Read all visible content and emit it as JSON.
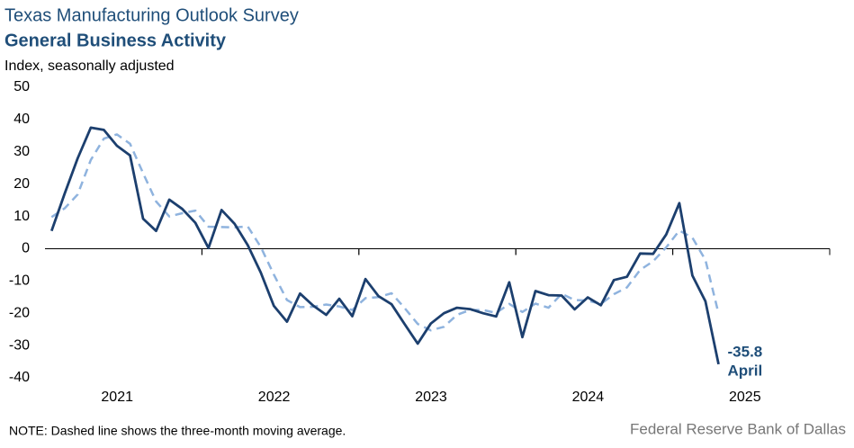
{
  "chart_data": {
    "type": "line",
    "title": "Texas Manufacturing Outlook Survey",
    "subtitle": "General Business Activity",
    "y_label": "Index, seasonally adjusted",
    "note": "NOTE: Dashed line shows the three-month  moving average.",
    "source": "Federal Reserve Bank of Dallas",
    "annotation": "April",
    "xlim": [
      2021,
      2026
    ],
    "ylim": [
      -40,
      50
    ],
    "yticks": [
      -40,
      -30,
      -20,
      -10,
      0,
      10,
      20,
      30,
      40,
      50
    ],
    "xticks": [
      {
        "value": 2021.5,
        "label": "2021"
      },
      {
        "value": 2022.5,
        "label": "2022"
      },
      {
        "value": 2023.5,
        "label": "2023"
      },
      {
        "value": 2024.5,
        "label": "2024"
      },
      {
        "value": 2025.5,
        "label": "2025"
      }
    ],
    "x": [
      2021.042,
      2021.125,
      2021.208,
      2021.292,
      2021.375,
      2021.458,
      2021.542,
      2021.625,
      2021.708,
      2021.792,
      2021.875,
      2021.958,
      2022.042,
      2022.125,
      2022.208,
      2022.292,
      2022.375,
      2022.458,
      2022.542,
      2022.625,
      2022.708,
      2022.792,
      2022.875,
      2022.958,
      2023.042,
      2023.125,
      2023.208,
      2023.292,
      2023.375,
      2023.458,
      2023.542,
      2023.625,
      2023.708,
      2023.792,
      2023.875,
      2023.958,
      2024.042,
      2024.125,
      2024.208,
      2024.292,
      2024.375,
      2024.458,
      2024.542,
      2024.625,
      2024.708,
      2024.792,
      2024.875,
      2024.958,
      2025.042,
      2025.125,
      2025.208,
      2025.292
    ],
    "series": [
      {
        "color": "#1c3f6e",
        "dash": false,
        "values": [
          5.5,
          17,
          28,
          37.5,
          36.8,
          31.9,
          28.9,
          9.3,
          5.5,
          15.2,
          12.3,
          8,
          0.2,
          12,
          7.7,
          1.1,
          -7.4,
          -17.7,
          -22.6,
          -13.9,
          -17.6,
          -20.5,
          -15.5,
          -20.9,
          -9.4,
          -14.7,
          -17.2,
          -23.4,
          -29.4,
          -23.2,
          -20,
          -18.3,
          -18.7,
          -20,
          -21,
          -10.4,
          -27.4,
          -13.1,
          -14.4,
          -14.5,
          -18.8,
          -15.1,
          -17.5,
          -9.7,
          -8.7,
          -1.5,
          -1.6,
          4.4,
          14.1,
          -8.3,
          -16.3,
          -35.8
        ]
      },
      {
        "color": "#8fb3de",
        "dash": true,
        "values": [
          9.8,
          12.5,
          16.8,
          27.5,
          34.1,
          35.4,
          32.5,
          23.4,
          14.6,
          10.0,
          11.0,
          11.8,
          6.8,
          6.7,
          6.6,
          6.9,
          0.5,
          -8.0,
          -15.9,
          -18.1,
          -18.0,
          -17.3,
          -17.9,
          -19.0,
          -15.3,
          -15.0,
          -13.8,
          -18.4,
          -23.3,
          -25.3,
          -24.2,
          -20.5,
          -19.0,
          -19.0,
          -19.9,
          -17.1,
          -19.6,
          -17.0,
          -18.3,
          -14.0,
          -15.9,
          -16.1,
          -17.1,
          -14.1,
          -12.0,
          -6.6,
          -3.9,
          0.4,
          5.6,
          3.4,
          -3.5,
          -20.1
        ]
      }
    ]
  }
}
